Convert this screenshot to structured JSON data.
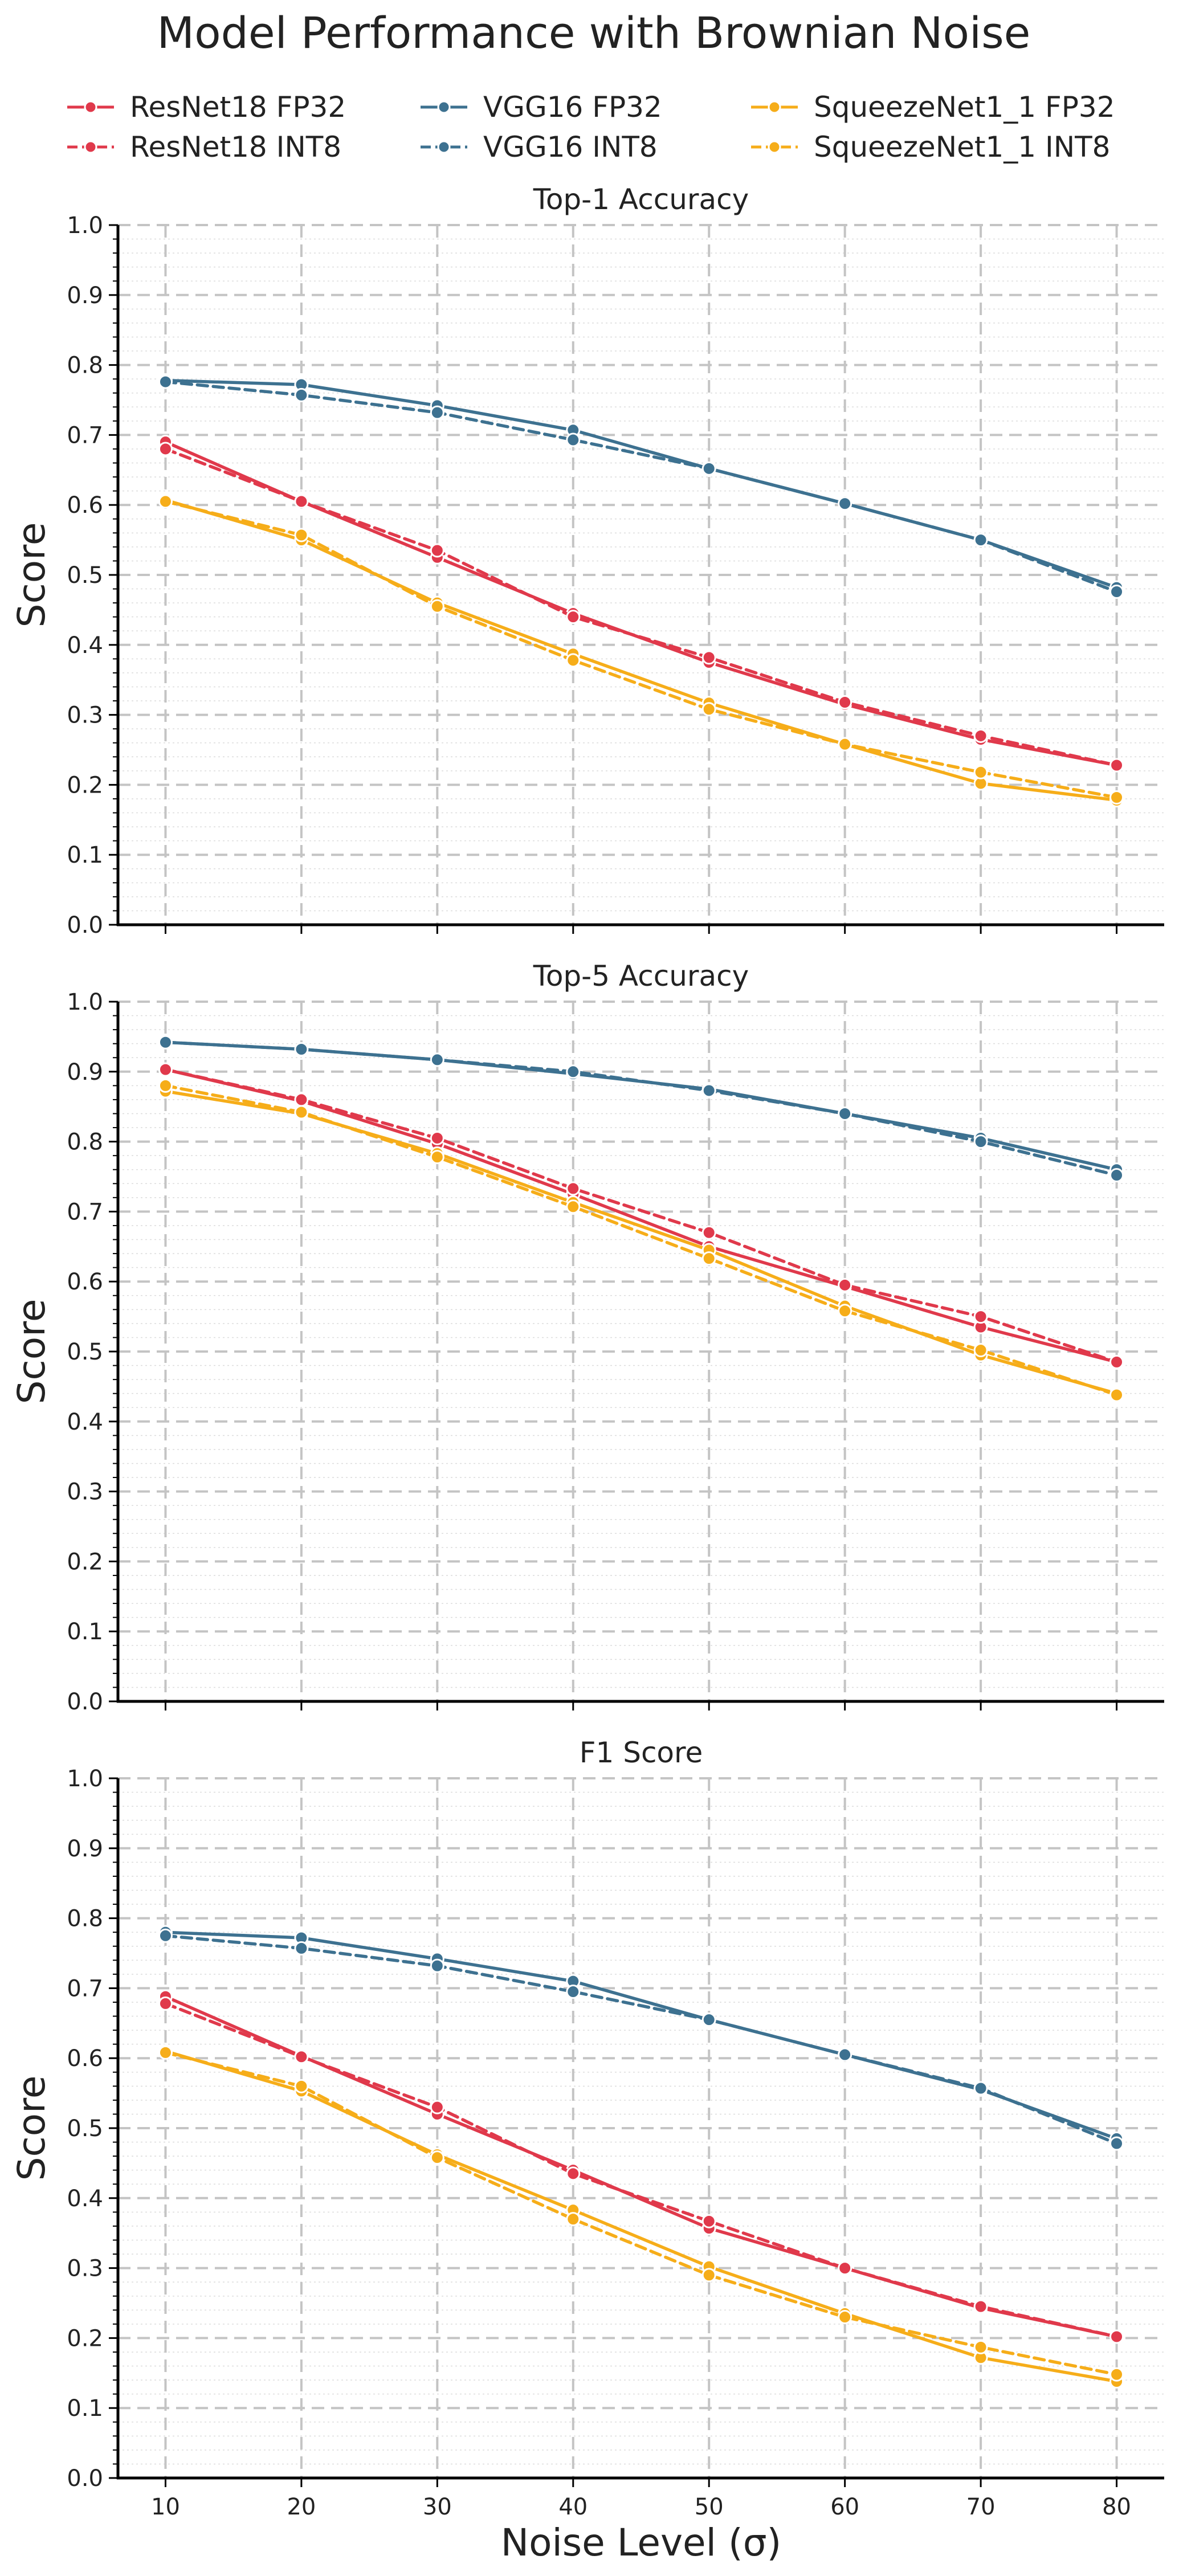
{
  "chart_data": {
    "type": "line",
    "title": "Model Performance with Brownian Noise",
    "xlabel": "Noise Level (σ)",
    "ylabel": "Score",
    "x": [
      10,
      20,
      30,
      40,
      50,
      60,
      70,
      80
    ],
    "xlim": [
      6.5,
      83.5
    ],
    "ylim": [
      0,
      1.0
    ],
    "yticks": [
      0.0,
      0.1,
      0.2,
      0.3,
      0.4,
      0.5,
      0.6,
      0.7,
      0.8,
      0.9,
      1.0
    ],
    "ytick_labels": [
      "0.0",
      "0.1",
      "0.2",
      "0.3",
      "0.4",
      "0.5",
      "0.6",
      "0.7",
      "0.8",
      "0.9",
      "1.0"
    ],
    "xtick_labels": [
      "10",
      "20",
      "30",
      "40",
      "50",
      "60",
      "70",
      "80"
    ],
    "grid": true,
    "legend_position": "top",
    "series_styles": [
      {
        "name": "ResNet18 FP32",
        "color": "#e0394b",
        "dash": "solid"
      },
      {
        "name": "ResNet18 INT8",
        "color": "#e0394b",
        "dash": "dashed"
      },
      {
        "name": "VGG16 FP32",
        "color": "#3d7190",
        "dash": "solid"
      },
      {
        "name": "VGG16 INT8",
        "color": "#3d7190",
        "dash": "dashed"
      },
      {
        "name": "SqueezeNet1_1 FP32",
        "color": "#f6ad19",
        "dash": "solid"
      },
      {
        "name": "SqueezeNet1_1 INT8",
        "color": "#f6ad19",
        "dash": "dashed"
      }
    ],
    "panels": [
      {
        "title": "Top-1 Accuracy",
        "series": [
          {
            "name": "ResNet18 FP32",
            "values": [
              0.69,
              0.605,
              0.525,
              0.445,
              0.375,
              0.315,
              0.265,
              0.228
            ]
          },
          {
            "name": "ResNet18 INT8",
            "values": [
              0.68,
              0.605,
              0.535,
              0.44,
              0.382,
              0.318,
              0.27,
              0.228
            ]
          },
          {
            "name": "VGG16 FP32",
            "values": [
              0.778,
              0.772,
              0.742,
              0.707,
              0.652,
              0.602,
              0.55,
              0.482
            ]
          },
          {
            "name": "VGG16 INT8",
            "values": [
              0.776,
              0.757,
              0.732,
              0.693,
              0.652,
              0.602,
              0.55,
              0.476
            ]
          },
          {
            "name": "SqueezeNet1_1 FP32",
            "values": [
              0.607,
              0.55,
              0.46,
              0.387,
              0.317,
              0.258,
              0.202,
              0.178
            ]
          },
          {
            "name": "SqueezeNet1_1 INT8",
            "values": [
              0.605,
              0.557,
              0.455,
              0.378,
              0.308,
              0.258,
              0.218,
              0.182
            ]
          }
        ]
      },
      {
        "title": "Top-5 Accuracy",
        "series": [
          {
            "name": "ResNet18 FP32",
            "values": [
              0.903,
              0.858,
              0.797,
              0.725,
              0.65,
              0.593,
              0.535,
              0.485
            ]
          },
          {
            "name": "ResNet18 INT8",
            "values": [
              0.903,
              0.86,
              0.805,
              0.733,
              0.67,
              0.595,
              0.55,
              0.485
            ]
          },
          {
            "name": "VGG16 FP32",
            "values": [
              0.942,
              0.932,
              0.917,
              0.897,
              0.875,
              0.84,
              0.805,
              0.76
            ]
          },
          {
            "name": "VGG16 INT8",
            "values": [
              0.942,
              0.932,
              0.917,
              0.9,
              0.873,
              0.84,
              0.8,
              0.752
            ]
          },
          {
            "name": "SqueezeNet1_1 FP32",
            "values": [
              0.872,
              0.84,
              0.783,
              0.713,
              0.645,
              0.565,
              0.495,
              0.44
            ]
          },
          {
            "name": "SqueezeNet1_1 INT8",
            "values": [
              0.88,
              0.842,
              0.778,
              0.707,
              0.633,
              0.558,
              0.502,
              0.438
            ]
          }
        ]
      },
      {
        "title": "F1 Score",
        "series": [
          {
            "name": "ResNet18 FP32",
            "values": [
              0.688,
              0.603,
              0.52,
              0.44,
              0.357,
              0.3,
              0.243,
              0.202
            ]
          },
          {
            "name": "ResNet18 INT8",
            "values": [
              0.678,
              0.602,
              0.53,
              0.435,
              0.367,
              0.3,
              0.245,
              0.202
            ]
          },
          {
            "name": "VGG16 FP32",
            "values": [
              0.78,
              0.772,
              0.742,
              0.71,
              0.655,
              0.605,
              0.555,
              0.485
            ]
          },
          {
            "name": "VGG16 INT8",
            "values": [
              0.775,
              0.757,
              0.732,
              0.695,
              0.655,
              0.605,
              0.557,
              0.478
            ]
          },
          {
            "name": "SqueezeNet1_1 FP32",
            "values": [
              0.61,
              0.553,
              0.462,
              0.383,
              0.302,
              0.235,
              0.172,
              0.138
            ]
          },
          {
            "name": "SqueezeNet1_1 INT8",
            "values": [
              0.608,
              0.56,
              0.458,
              0.37,
              0.29,
              0.23,
              0.187,
              0.148
            ]
          }
        ]
      }
    ]
  }
}
